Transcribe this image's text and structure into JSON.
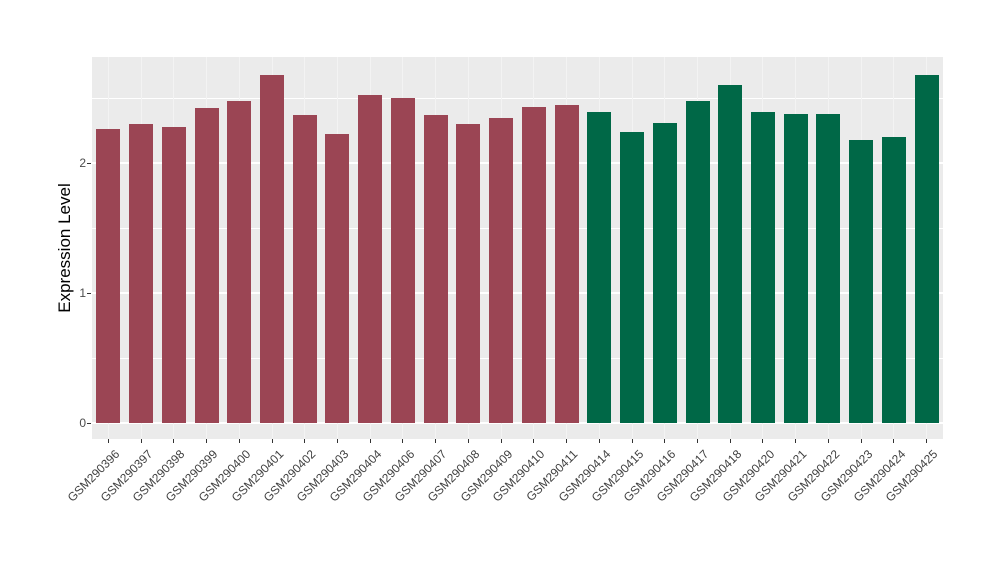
{
  "chart_data": {
    "type": "bar",
    "title": "",
    "xlabel": "",
    "ylabel": "Expression Level",
    "categories": [
      "GSM290396",
      "GSM290397",
      "GSM290398",
      "GSM290399",
      "GSM290400",
      "GSM290401",
      "GSM290402",
      "GSM290403",
      "GSM290404",
      "GSM290406",
      "GSM290407",
      "GSM290408",
      "GSM290409",
      "GSM290410",
      "GSM290411",
      "GSM290414",
      "GSM290415",
      "GSM290416",
      "GSM290417",
      "GSM290418",
      "GSM290420",
      "GSM290421",
      "GSM290422",
      "GSM290423",
      "GSM290424",
      "GSM290425"
    ],
    "values": [
      2.26,
      2.3,
      2.28,
      2.42,
      2.48,
      2.68,
      2.37,
      2.22,
      2.52,
      2.5,
      2.37,
      2.3,
      2.35,
      2.43,
      2.45,
      2.39,
      2.24,
      2.31,
      2.48,
      2.6,
      2.39,
      2.38,
      2.38,
      2.18,
      2.2,
      2.68
    ],
    "bar_groups": [
      "group1",
      "group1",
      "group1",
      "group1",
      "group1",
      "group1",
      "group1",
      "group1",
      "group1",
      "group1",
      "group1",
      "group1",
      "group1",
      "group1",
      "group1",
      "group2",
      "group2",
      "group2",
      "group2",
      "group2",
      "group2",
      "group2",
      "group2",
      "group2",
      "group2",
      "group2"
    ],
    "group_colors": {
      "group1": "#9B4554",
      "group2": "#006847"
    },
    "y_ticks": [
      0,
      1,
      2
    ],
    "y_minor_ticks": [
      0.5,
      1.5,
      2.5
    ],
    "ylim": [
      -0.13,
      2.81
    ],
    "grid": true,
    "legend_position": "none",
    "panel_background": "#EBEBEB",
    "grid_color": "#FFFFFF"
  }
}
